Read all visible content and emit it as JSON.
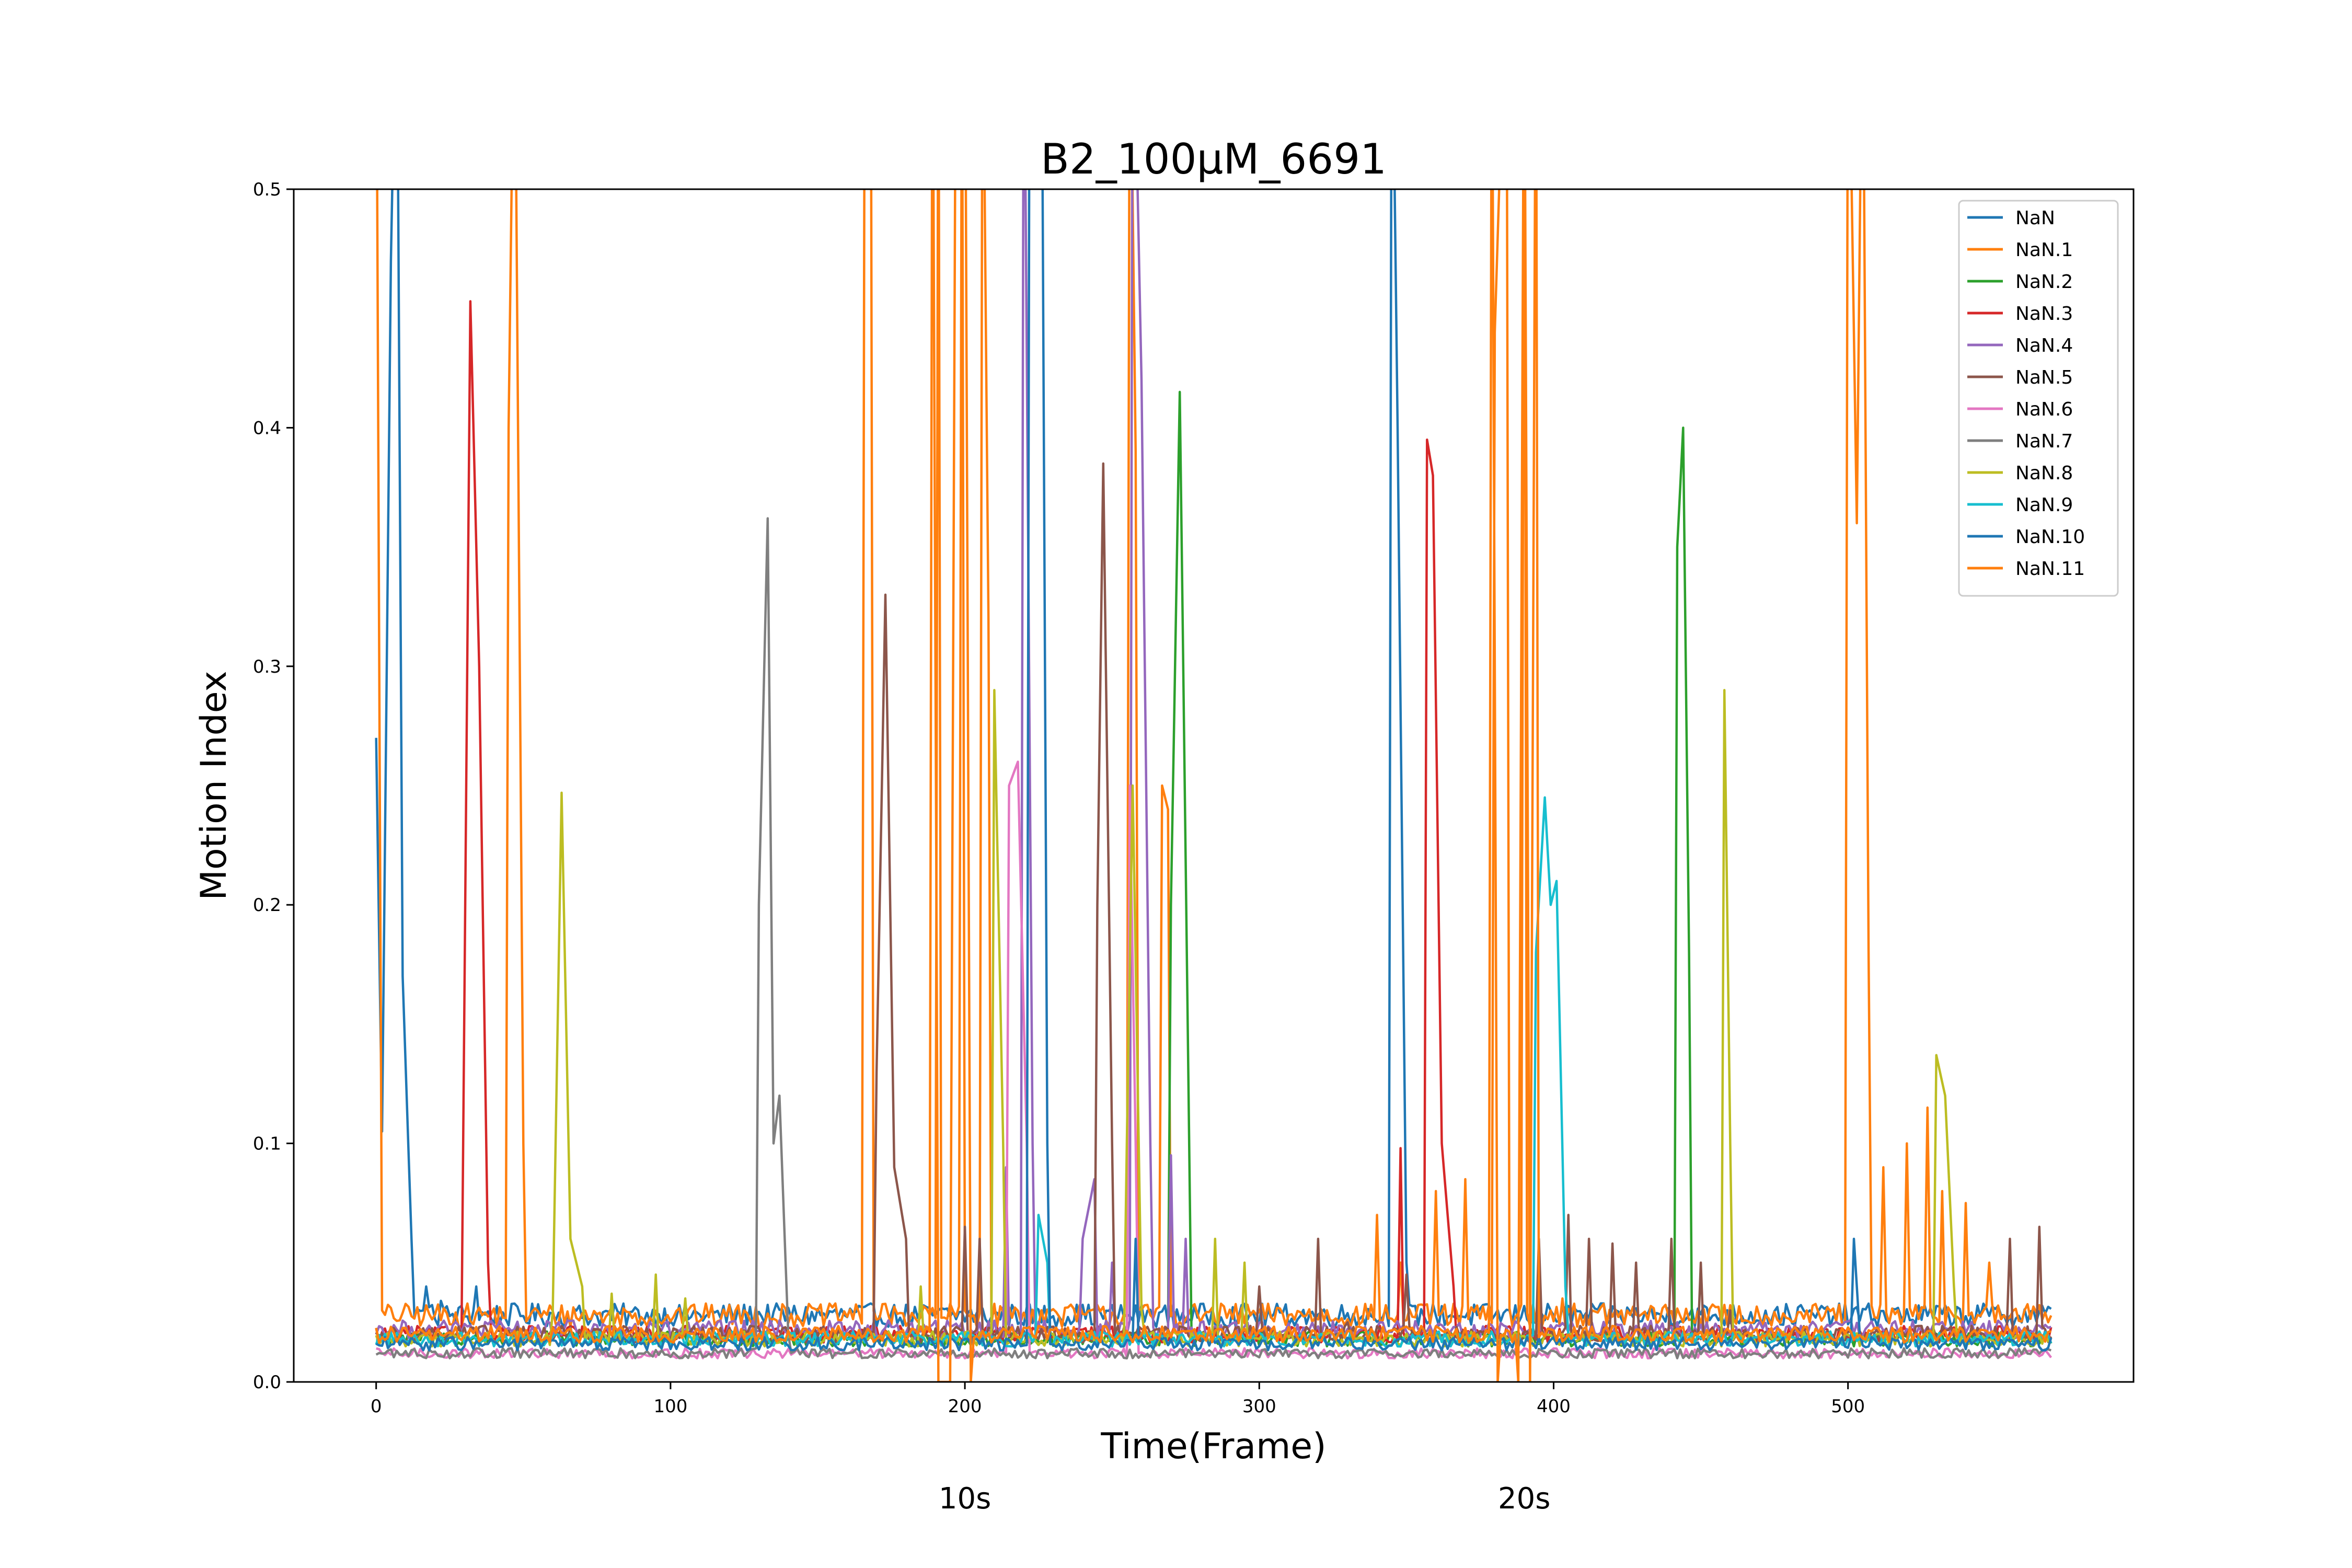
{
  "chart_data": {
    "type": "line",
    "title": "B2_100μM_6691",
    "xlabel": "Time(Frame)",
    "ylabel": "Motion Index",
    "xlim": [
      -28,
      597
    ],
    "ylim": [
      0.0,
      0.5
    ],
    "xticks": [
      0,
      100,
      200,
      300,
      400,
      500
    ],
    "yticks": [
      0.0,
      0.1,
      0.2,
      0.3,
      0.4,
      0.5
    ],
    "xtick_labels": [
      "0",
      "100",
      "200",
      "300",
      "400",
      "500"
    ],
    "ytick_labels": [
      "0.0",
      "0.1",
      "0.2",
      "0.3",
      "0.4",
      "0.5"
    ],
    "secondary_x_labels": [
      {
        "x": 200,
        "text": "10s"
      },
      {
        "x": 390,
        "text": "20s"
      }
    ],
    "grid": false,
    "legend_position": "upper right",
    "series": [
      {
        "name": "NaN",
        "color": "#1f77b4",
        "baseline": 0.028,
        "peaks": [
          [
            0,
            0.27
          ],
          [
            2,
            0.105
          ],
          [
            5,
            0.47
          ],
          [
            7,
            0.6
          ],
          [
            9,
            0.17
          ],
          [
            12,
            0.06
          ],
          [
            17,
            0.04
          ],
          [
            22,
            0.034
          ],
          [
            34,
            0.04
          ],
          [
            345,
            0.6
          ],
          [
            347,
            0.4
          ],
          [
            350,
            0.05
          ]
        ]
      },
      {
        "name": "NaN.1",
        "color": "#ff7f0e",
        "baseline": 0.028,
        "peaks": [
          [
            0,
            0.6
          ],
          [
            2,
            0.03
          ],
          [
            45,
            0.4
          ],
          [
            47,
            0.6
          ],
          [
            50,
            0.1
          ],
          [
            166,
            0.6
          ],
          [
            168,
            0.6
          ],
          [
            191,
            0.6
          ],
          [
            199,
            0.6
          ],
          [
            206,
            0.6
          ],
          [
            208,
            0.32
          ],
          [
            256,
            0.6
          ],
          [
            258,
            0.39
          ],
          [
            267,
            0.25
          ],
          [
            269,
            0.24
          ],
          [
            340,
            0.07
          ],
          [
            348,
            0.05
          ],
          [
            360,
            0.08
          ],
          [
            370,
            0.085
          ],
          [
            380,
            0.44
          ],
          [
            384,
            0.6
          ],
          [
            390,
            0.6
          ],
          [
            403,
            0.035
          ],
          [
            500,
            0.6
          ],
          [
            503,
            0.36
          ],
          [
            505,
            0.6
          ],
          [
            507,
            0.18
          ],
          [
            512,
            0.09
          ],
          [
            520,
            0.1
          ],
          [
            527,
            0.115
          ],
          [
            532,
            0.08
          ],
          [
            540,
            0.075
          ],
          [
            548,
            0.05
          ],
          [
            560,
            0.03
          ],
          [
            568,
            0.025
          ]
        ]
      },
      {
        "name": "NaN.2",
        "color": "#2ca02c",
        "baseline": 0.018,
        "peaks": [
          [
            270,
            0.2
          ],
          [
            273,
            0.415
          ],
          [
            276,
            0.12
          ],
          [
            442,
            0.35
          ],
          [
            444,
            0.4
          ],
          [
            446,
            0.18
          ]
        ]
      },
      {
        "name": "NaN.3",
        "color": "#d62728",
        "baseline": 0.02,
        "peaks": [
          [
            29,
            0.02
          ],
          [
            32,
            0.453
          ],
          [
            35,
            0.3
          ],
          [
            38,
            0.05
          ],
          [
            348,
            0.098
          ],
          [
            357,
            0.395
          ],
          [
            359,
            0.38
          ],
          [
            362,
            0.1
          ],
          [
            366,
            0.04
          ]
        ]
      },
      {
        "name": "NaN.4",
        "color": "#9467bd",
        "baseline": 0.022,
        "peaks": [
          [
            214,
            0.09
          ],
          [
            220,
            0.6
          ],
          [
            223,
            0.1
          ],
          [
            240,
            0.06
          ],
          [
            244,
            0.085
          ],
          [
            250,
            0.05
          ],
          [
            257,
            0.6
          ],
          [
            260,
            0.42
          ],
          [
            263,
            0.1
          ],
          [
            270,
            0.095
          ],
          [
            275,
            0.06
          ]
        ]
      },
      {
        "name": "NaN.5",
        "color": "#8c564b",
        "baseline": 0.02,
        "peaks": [
          [
            170,
            0.13
          ],
          [
            173,
            0.33
          ],
          [
            176,
            0.09
          ],
          [
            180,
            0.06
          ],
          [
            200,
            0.065
          ],
          [
            205,
            0.06
          ],
          [
            245,
            0.2
          ],
          [
            247,
            0.385
          ],
          [
            250,
            0.1
          ],
          [
            300,
            0.04
          ],
          [
            320,
            0.06
          ],
          [
            330,
            0.025
          ],
          [
            350,
            0.045
          ],
          [
            395,
            0.06
          ],
          [
            405,
            0.07
          ],
          [
            412,
            0.06
          ],
          [
            420,
            0.058
          ],
          [
            428,
            0.05
          ],
          [
            440,
            0.06
          ],
          [
            450,
            0.05
          ],
          [
            460,
            0.03
          ],
          [
            555,
            0.06
          ],
          [
            565,
            0.065
          ]
        ]
      },
      {
        "name": "NaN.6",
        "color": "#e377c2",
        "baseline": 0.012,
        "peaks": [
          [
            215,
            0.25
          ],
          [
            218,
            0.26
          ],
          [
            221,
            0.1
          ],
          [
            256,
            0.25
          ],
          [
            258,
            0.1
          ]
        ]
      },
      {
        "name": "NaN.7",
        "color": "#7f7f7f",
        "baseline": 0.012,
        "peaks": [
          [
            130,
            0.2
          ],
          [
            133,
            0.362
          ],
          [
            135,
            0.1
          ],
          [
            137,
            0.12
          ],
          [
            140,
            0.02
          ]
        ]
      },
      {
        "name": "NaN.8",
        "color": "#bcbd22",
        "baseline": 0.018,
        "peaks": [
          [
            60,
            0.03
          ],
          [
            63,
            0.247
          ],
          [
            66,
            0.06
          ],
          [
            70,
            0.04
          ],
          [
            80,
            0.037
          ],
          [
            95,
            0.045
          ],
          [
            105,
            0.035
          ],
          [
            185,
            0.04
          ],
          [
            210,
            0.29
          ],
          [
            213,
            0.1
          ],
          [
            255,
            0.1
          ],
          [
            257,
            0.25
          ],
          [
            260,
            0.03
          ],
          [
            285,
            0.06
          ],
          [
            295,
            0.05
          ],
          [
            458,
            0.29
          ],
          [
            460,
            0.1
          ],
          [
            530,
            0.137
          ],
          [
            533,
            0.12
          ],
          [
            536,
            0.04
          ]
        ]
      },
      {
        "name": "NaN.9",
        "color": "#17becf",
        "baseline": 0.018,
        "peaks": [
          [
            225,
            0.07
          ],
          [
            228,
            0.05
          ],
          [
            394,
            0.18
          ],
          [
            397,
            0.245
          ],
          [
            399,
            0.2
          ],
          [
            401,
            0.21
          ],
          [
            404,
            0.04
          ]
        ]
      },
      {
        "name": "NaN.10",
        "color": "#1f77b4",
        "baseline": 0.016,
        "peaks": [
          [
            222,
            0.6
          ],
          [
            226,
            0.6
          ],
          [
            228,
            0.1
          ],
          [
            258,
            0.06
          ],
          [
            502,
            0.06
          ],
          [
            504,
            0.02
          ]
        ]
      },
      {
        "name": "NaN.11",
        "color": "#ff7f0e",
        "baseline": 0.02,
        "peaks": [
          [
            189,
            0.6
          ],
          [
            191,
            0.0
          ],
          [
            195,
            0.0
          ],
          [
            197,
            0.6
          ],
          [
            200,
            0.6
          ],
          [
            202,
            0.0
          ],
          [
            379,
            0.6
          ],
          [
            381,
            0.0
          ],
          [
            388,
            0.0
          ],
          [
            390,
            0.6
          ],
          [
            392,
            0.0
          ],
          [
            394,
            0.6
          ]
        ]
      }
    ]
  }
}
